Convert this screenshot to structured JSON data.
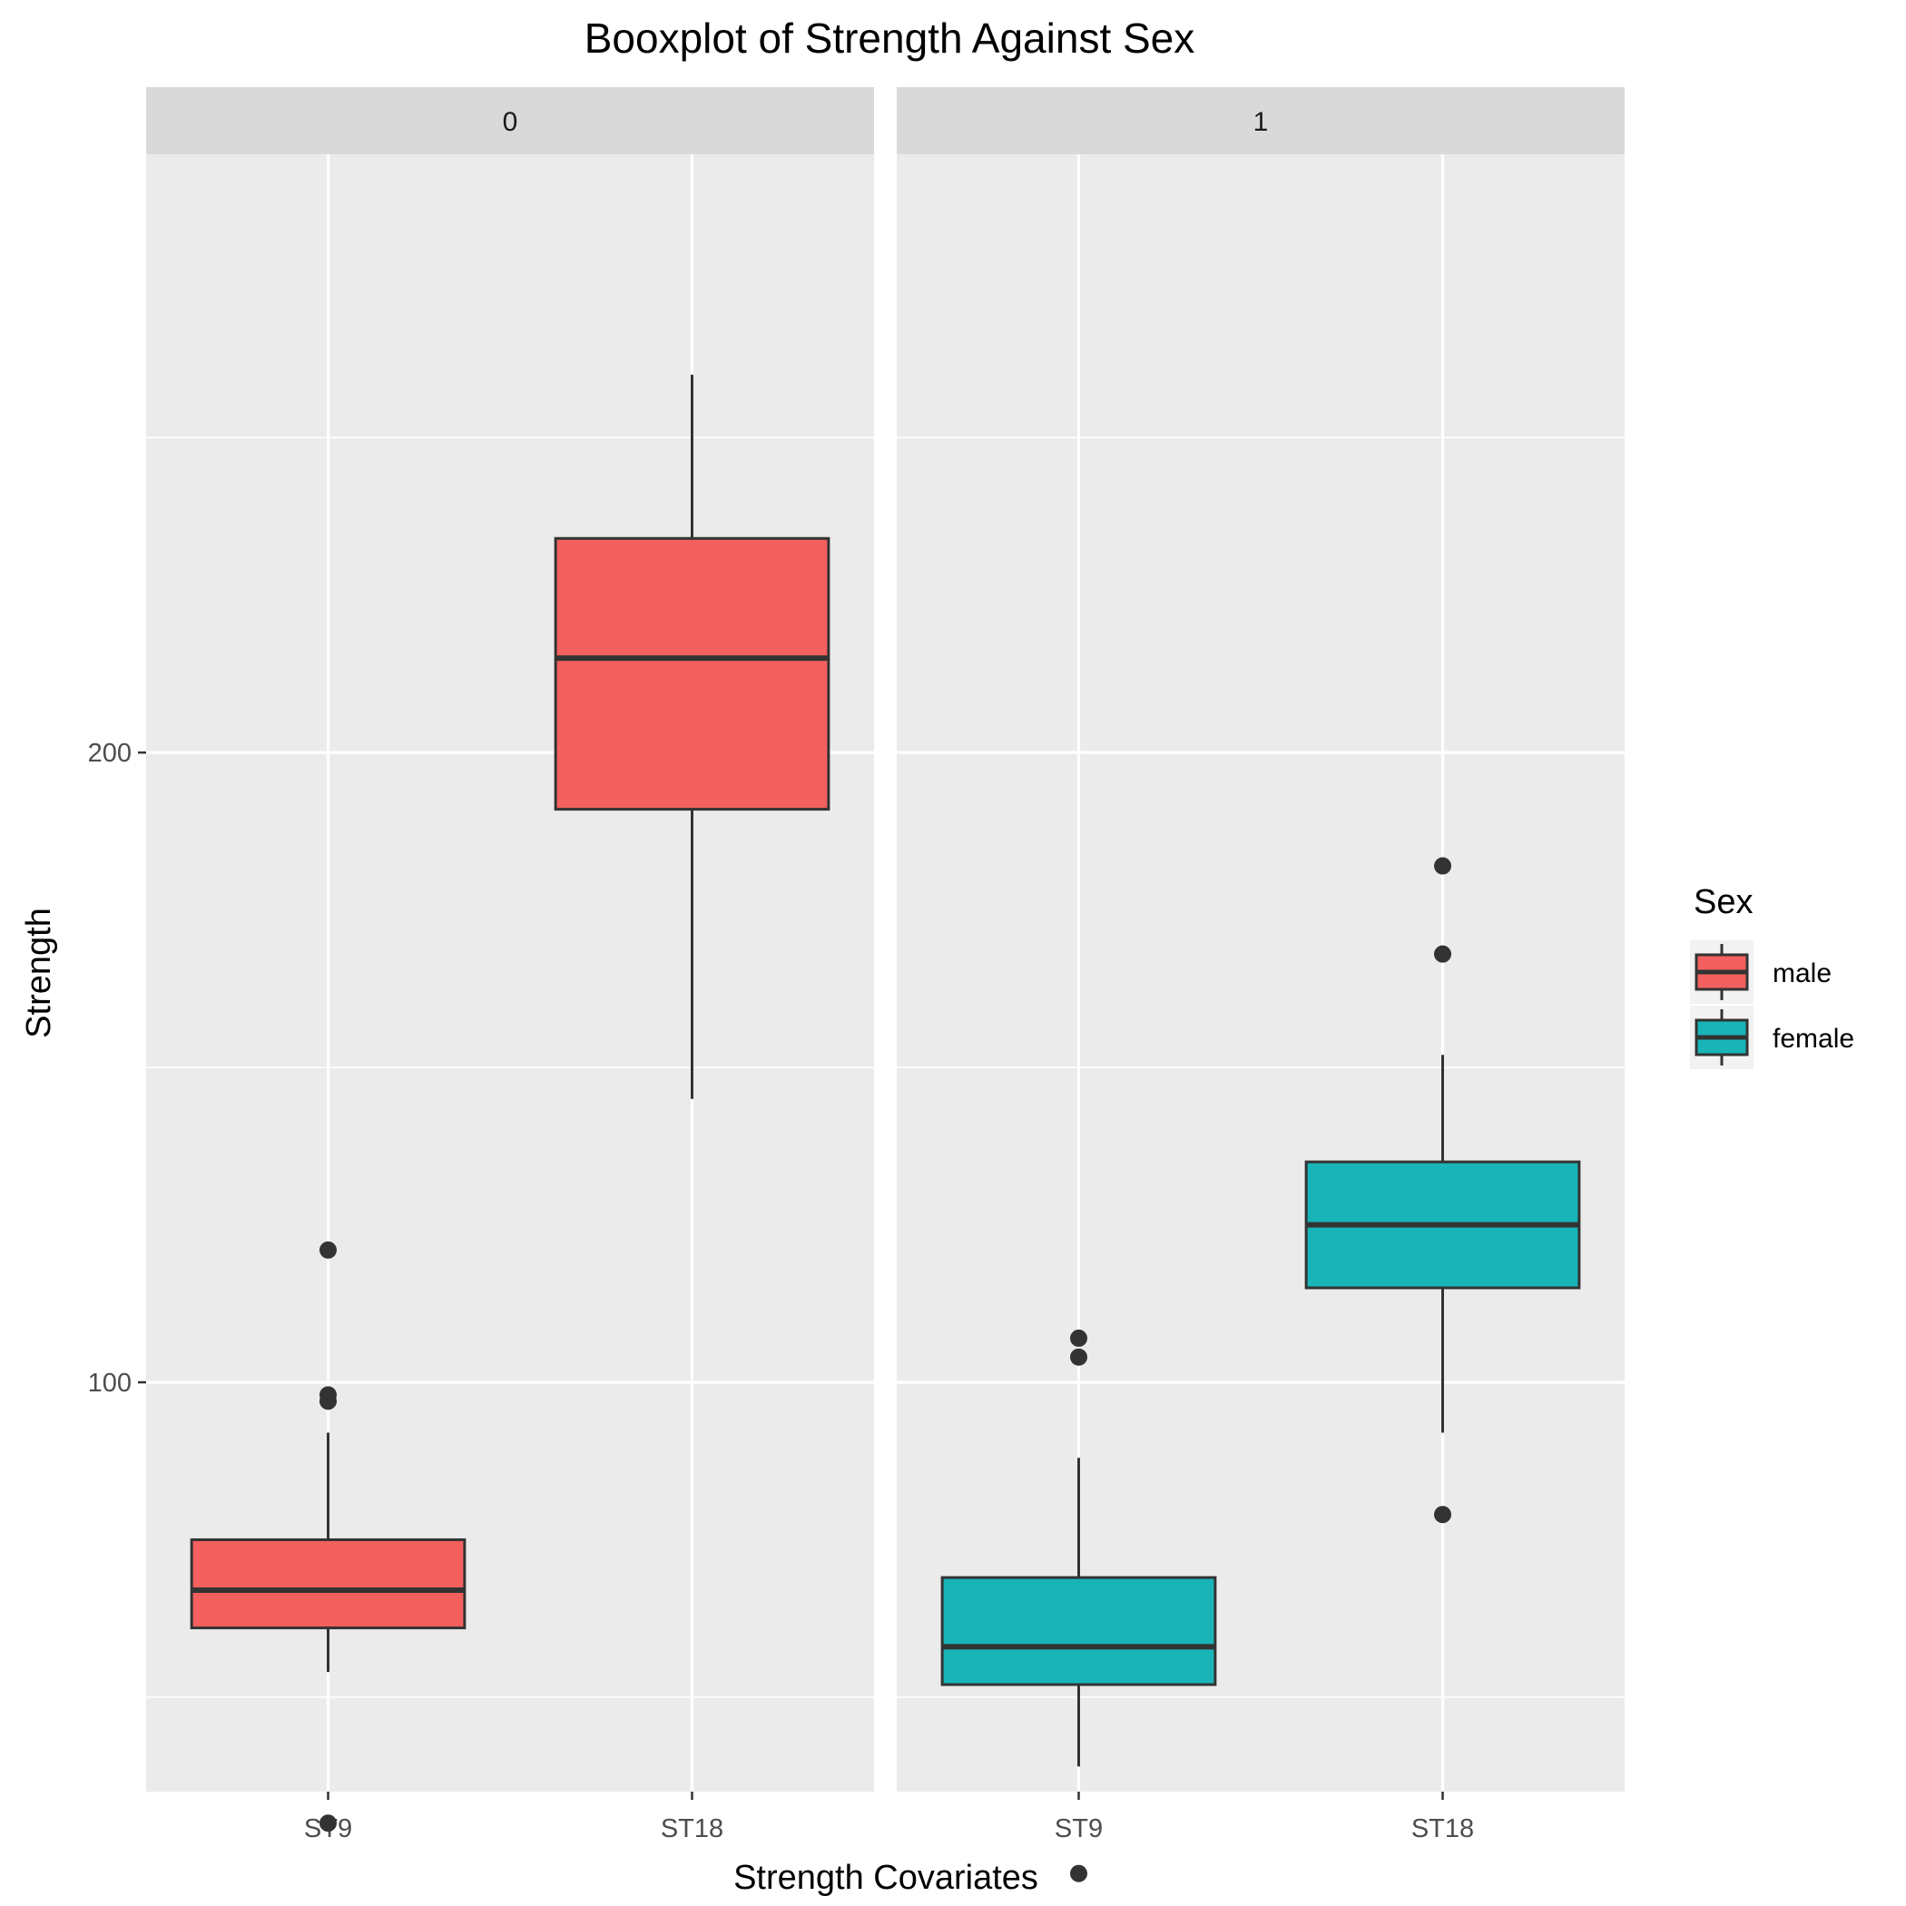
{
  "chart_data": {
    "type": "boxplot",
    "title": "Booxplot of Strength Against Sex",
    "xlabel": "Strength Covariates",
    "ylabel": "Strength",
    "ylim": [
      35,
      295
    ],
    "yticks": [
      100,
      200
    ],
    "grid": true,
    "legend": {
      "title": "Sex",
      "position": "right",
      "entries": [
        {
          "label": "male",
          "color": "#F3605E"
        },
        {
          "label": "female",
          "color": "#19B4B8"
        }
      ]
    },
    "facets": [
      {
        "label": "0",
        "categories": [
          "ST9",
          "ST18"
        ],
        "boxes": [
          {
            "category": "ST9",
            "group": "male",
            "whisker_low": 54,
            "q1": 61,
            "median": 67,
            "q3": 75,
            "whisker_high": 92,
            "outliers": [
              30,
              97,
              98,
              121
            ]
          },
          {
            "category": "ST18",
            "group": "male",
            "whisker_low": 145,
            "q1": 191,
            "median": 215,
            "q3": 234,
            "whisker_high": 260,
            "outliers": []
          }
        ]
      },
      {
        "label": "1",
        "categories": [
          "ST9",
          "ST18"
        ],
        "boxes": [
          {
            "category": "ST9",
            "group": "female",
            "whisker_low": 39,
            "q1": 52,
            "median": 58,
            "q3": 69,
            "whisker_high": 88,
            "outliers": [
              22,
              104,
              107
            ]
          },
          {
            "category": "ST18",
            "group": "female",
            "whisker_low": 92,
            "q1": 115,
            "median": 125,
            "q3": 135,
            "whisker_high": 152,
            "outliers": [
              79,
              168,
              182
            ]
          }
        ]
      }
    ]
  }
}
